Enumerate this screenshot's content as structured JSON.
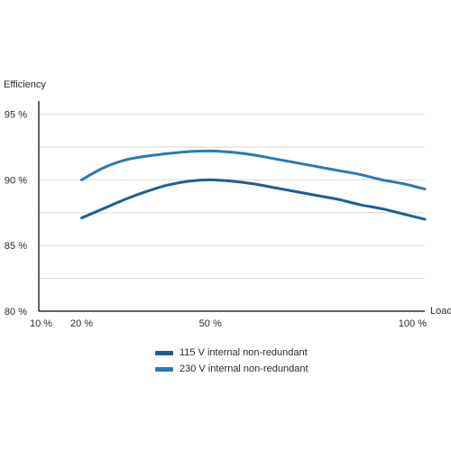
{
  "chart_data": {
    "type": "line",
    "title": "",
    "ylabel": "Efficiency",
    "xlabel": "Load",
    "x_ticks": [
      "10 %",
      "20 %",
      "50 %",
      "100 %"
    ],
    "y_ticks": [
      "80 %",
      "85 %",
      "90 %",
      "95 %"
    ],
    "xlim": [
      10,
      100
    ],
    "ylim": [
      80,
      96
    ],
    "grid": true,
    "legend_position": "bottom-center",
    "series": [
      {
        "name": "115 V internal non-redundant",
        "color": "#1f5e94",
        "x": [
          20,
          25,
          30,
          35,
          40,
          45,
          50,
          55,
          60,
          65,
          70,
          75,
          80,
          85,
          90,
          95,
          100
        ],
        "y": [
          87.1,
          87.8,
          88.5,
          89.1,
          89.6,
          89.9,
          90.0,
          89.9,
          89.7,
          89.4,
          89.1,
          88.8,
          88.5,
          88.1,
          87.8,
          87.4,
          87.0
        ]
      },
      {
        "name": "230 V internal non-redundant",
        "color": "#2b79b5",
        "x": [
          20,
          25,
          30,
          35,
          40,
          45,
          50,
          55,
          60,
          65,
          70,
          75,
          80,
          85,
          90,
          95,
          100
        ],
        "y": [
          90.0,
          90.9,
          91.5,
          91.8,
          92.0,
          92.15,
          92.2,
          92.1,
          91.9,
          91.6,
          91.3,
          91.0,
          90.7,
          90.4,
          90.0,
          89.7,
          89.3
        ]
      }
    ]
  }
}
